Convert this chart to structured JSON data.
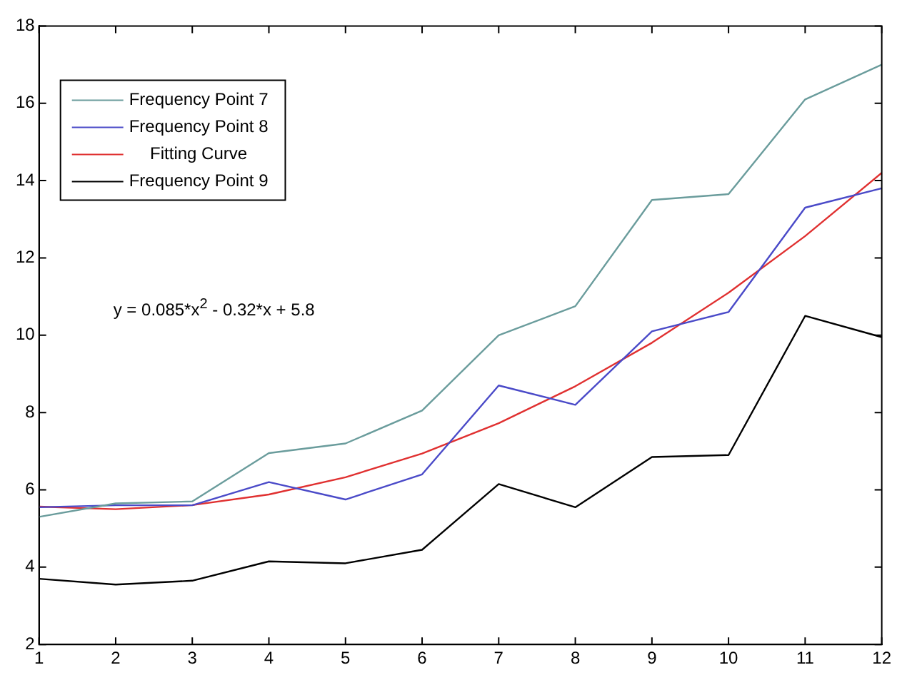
{
  "chart_data": {
    "type": "line",
    "x": [
      1,
      2,
      3,
      4,
      5,
      6,
      7,
      8,
      9,
      10,
      11,
      12
    ],
    "xlim": [
      1,
      12
    ],
    "xticks": [
      1,
      2,
      3,
      4,
      5,
      6,
      7,
      8,
      9,
      10,
      11,
      12
    ],
    "ylim": [
      2,
      18
    ],
    "yticks": [
      2,
      4,
      6,
      8,
      10,
      12,
      14,
      16,
      18
    ],
    "grid": false,
    "legend": "top left",
    "marker": "none",
    "line_style": "solid",
    "annotations": [
      "y = 0.085*x$^{2}$ - 0.32*x + 5.8"
    ],
    "series": [
      {
        "name": "Frequency Point 7",
        "color": "#6a9c9c",
        "values": [
          5.3,
          5.65,
          5.7,
          6.95,
          7.2,
          8.05,
          10.0,
          10.75,
          13.5,
          13.65,
          16.1,
          17.0
        ]
      },
      {
        "name": "Frequency Point 8",
        "color": "#4a4ac8",
        "values": [
          5.55,
          5.6,
          5.6,
          6.2,
          5.75,
          6.4,
          8.7,
          8.2,
          10.1,
          10.6,
          13.3,
          13.8
        ]
      },
      {
        "name": "Fitting Curve",
        "color": "#e03030",
        "values": [
          5.565,
          5.5,
          5.605,
          5.88,
          6.325,
          6.94,
          7.725,
          8.68,
          9.805,
          11.1,
          12.565,
          14.2
        ]
      },
      {
        "name": "Frequency Point 9",
        "color": "#000000",
        "values": [
          3.7,
          3.55,
          3.65,
          4.15,
          4.1,
          4.45,
          6.15,
          5.55,
          6.85,
          6.9,
          10.5,
          9.95
        ]
      }
    ]
  }
}
